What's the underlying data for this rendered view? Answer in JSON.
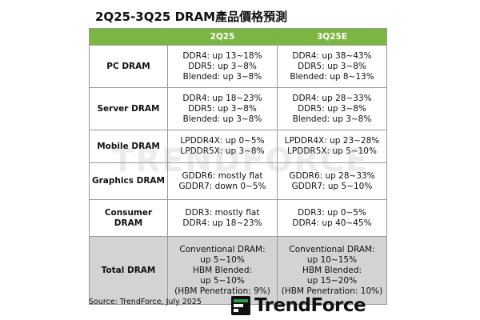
{
  "title": "2Q25-3Q25 DRAM產品價格預測",
  "header": {
    "col1": "",
    "col2": "2Q25",
    "col3": "3Q25E"
  },
  "rows": [
    {
      "label": "PC DRAM",
      "q2": [
        "DDR4: up 13~18%",
        "DDR5: up 3~8%",
        "Blended: up 3~8%"
      ],
      "q3": [
        "DDR4: up 38~43%",
        "DDR5: up 3~8%",
        "Blended: up 8~13%"
      ]
    },
    {
      "label": "Server DRAM",
      "q2": [
        "DDR4: up 18~23%",
        "DDR5: up 3~8%",
        "Blended: up 3~8%"
      ],
      "q3": [
        "DDR4: up 28~33%",
        "DDR5: up 3~8%",
        "Blended: up 3~8%"
      ]
    },
    {
      "label": "Mobile DRAM",
      "q2": [
        "LPDDR4X: up 0~5%",
        "LPDDR5X: up 3~8%"
      ],
      "q3": [
        "LPDDR4X: up 23~28%",
        "LPDDR5X: up 5~10%"
      ]
    },
    {
      "label": "Graphics DRAM",
      "q2": [
        "GDDR6: mostly flat",
        "GDDR7: down 0~5%"
      ],
      "q3": [
        "GDDR6: up 28~33%",
        "GDDR7: up 5~10%"
      ]
    },
    {
      "label": "Consumer DRAM",
      "q2": [
        "DDR3: mostly flat",
        "DDR4: up 18~23%"
      ],
      "q3": [
        "DDR3: up 0~5%",
        "DDR4: up 40~45%"
      ]
    },
    {
      "label": "Total DRAM",
      "q2": [
        "Conventional DRAM:",
        "up 5~10%",
        "HBM Blended:",
        "up 5~10%",
        "(HBM Penetration: 9%)"
      ],
      "q3": [
        "Conventional DRAM:",
        "up 10~15%",
        "HBM Blended:",
        "up 15~20%",
        "(HBM Penetration: 10%)"
      ]
    }
  ],
  "watermark": "TRENDFORCE",
  "source": "Source: TrendForce, July 2025",
  "logo": {
    "text": "TrendForce",
    "icon": "trendforce-logo-icon",
    "accent_color": "#2e9e3f"
  },
  "colors": {
    "header_green": "#7cb542",
    "total_row_gray": "#d3d3d3"
  }
}
